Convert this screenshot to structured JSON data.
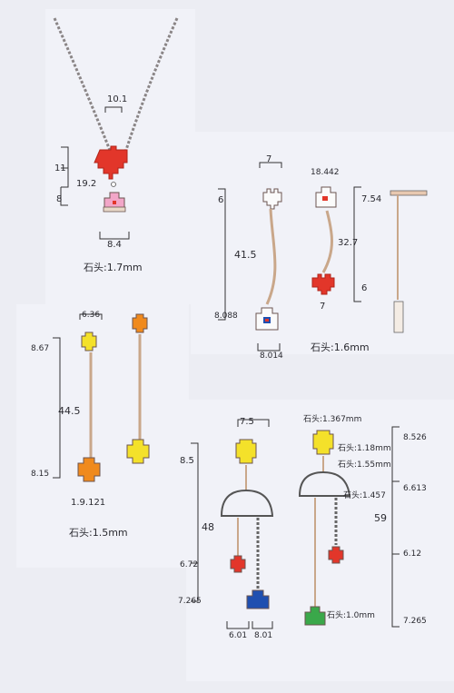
{
  "sheet": {
    "paper_color": "#ecedf3",
    "panel_color": "#f1f2f8",
    "ink_color": "#2a2a30"
  },
  "necklace": {
    "dims": [
      "10.1",
      "11",
      "19.2",
      "8",
      "8.4"
    ],
    "stone_note": "石头:1.7mm",
    "heart_color": "#e2362a",
    "house_color": "#f2a6c8"
  },
  "stud_drop": {
    "dims": [
      "7",
      "18.442",
      "6",
      "41.5",
      "32.7",
      "7.54",
      "8.088",
      "6",
      "7",
      "8.014"
    ],
    "stone_note": "石头:1.6mm",
    "colors": {
      "heart": "#e2362a",
      "house_door": "#1f4fb0"
    }
  },
  "stick_drop": {
    "dims": [
      "6.36",
      "8.67",
      "44.5",
      "8.15",
      "1.9.121"
    ],
    "stone_note": "石头:1.5mm",
    "colors": {
      "yellow": "#f4e12a",
      "orange": "#f08a1d"
    }
  },
  "arch_set": {
    "dims": [
      "7.5",
      "8.5",
      "48",
      "6.72",
      "7.265",
      "6.01",
      "8.01"
    ],
    "notes": [
      "石头:1.367mm",
      "石头:1.18mm",
      "石头:1.55mm",
      "石头:1.457",
      "石头:1.0mm"
    ],
    "right_dims": [
      "8.526",
      "6.613",
      "59",
      "6.12",
      "7.265"
    ],
    "colors": {
      "yellow": "#f4e12a",
      "red": "#e2362a",
      "blue": "#1f4fb0",
      "green": "#3aa84a"
    }
  }
}
